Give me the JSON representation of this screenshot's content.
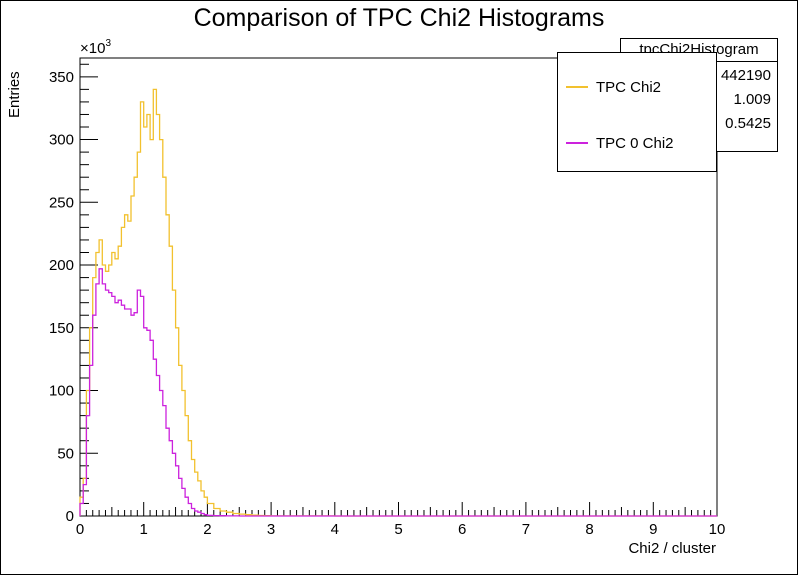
{
  "chart_data": {
    "type": "line",
    "title": "Comparison of TPC Chi2 Histograms",
    "xlabel": "Chi2 / cluster",
    "ylabel": "Entries",
    "y_exponent_base": "×10",
    "y_exponent_power": "3",
    "xlim": [
      0,
      10
    ],
    "ylim": [
      0,
      365
    ],
    "x_ticks": [
      "0",
      "1",
      "2",
      "3",
      "4",
      "5",
      "6",
      "7",
      "8",
      "9",
      "10"
    ],
    "y_ticks": [
      "0",
      "50",
      "100",
      "150",
      "200",
      "250",
      "300",
      "350"
    ],
    "x": [
      0.0,
      0.05,
      0.1,
      0.15,
      0.2,
      0.25,
      0.3,
      0.35,
      0.4,
      0.45,
      0.5,
      0.55,
      0.6,
      0.65,
      0.7,
      0.75,
      0.8,
      0.85,
      0.9,
      0.95,
      1.0,
      1.05,
      1.1,
      1.15,
      1.2,
      1.25,
      1.3,
      1.35,
      1.4,
      1.45,
      1.5,
      1.55,
      1.6,
      1.65,
      1.7,
      1.75,
      1.8,
      1.85,
      1.9,
      1.95,
      2.0,
      2.1,
      2.2,
      2.3,
      2.4,
      2.5,
      2.6,
      2.7,
      2.8,
      2.9,
      3.0,
      3.5,
      4.0,
      10.0
    ],
    "series": [
      {
        "name": "TPC Chi2",
        "color": "#f2c12e",
        "values": [
          15,
          30,
          100,
          150,
          190,
          210,
          220,
          200,
          195,
          200,
          210,
          205,
          215,
          230,
          240,
          235,
          255,
          270,
          290,
          330,
          310,
          320,
          300,
          340,
          320,
          300,
          270,
          240,
          215,
          180,
          150,
          120,
          100,
          80,
          60,
          45,
          35,
          28,
          20,
          15,
          10,
          6,
          4,
          3,
          2,
          1.5,
          1,
          0.6,
          0.4,
          0.2,
          0.1,
          0.05,
          0.02,
          0
        ]
      },
      {
        "name": "TPC 0 Chi2",
        "color": "#cc22dd",
        "values": [
          10,
          25,
          80,
          120,
          160,
          185,
          197,
          185,
          180,
          178,
          175,
          170,
          172,
          168,
          165,
          165,
          160,
          162,
          180,
          175,
          150,
          148,
          140,
          125,
          112,
          100,
          88,
          70,
          60,
          50,
          40,
          30,
          22,
          15,
          10,
          6,
          4,
          3,
          2,
          1,
          0.5,
          0.3,
          0.2,
          0.1,
          0.05,
          0.02,
          0,
          0,
          0,
          0,
          0,
          0,
          0,
          0
        ]
      }
    ],
    "stats_box": {
      "name": "tpcChi2Histogram",
      "entries": "442190",
      "mean": "1.009",
      "std": "0.5425"
    }
  }
}
